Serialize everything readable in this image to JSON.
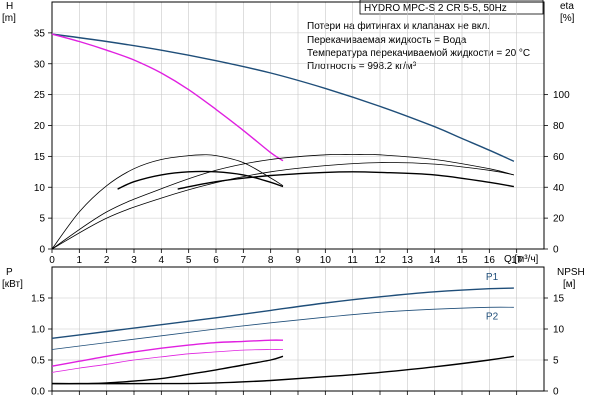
{
  "chart_data": [
    {
      "type": "line",
      "title": "HYDRO MPC-S 2 CR 5-5, 50Hz",
      "notes": [
        "Потери на фитингах и клапанах не вкл.",
        "Перекачиваемая жидкость = Вода",
        "Температура перекачиваемой жидкости = 20 °C",
        "Плотность = 998.2 кг/м³"
      ],
      "xlabel": "Q [м³/ч]",
      "ylabel": "H",
      "ylabel_unit": "[m]",
      "y2label": "eta",
      "y2label_unit": "[%]",
      "xlim": [
        0,
        18
      ],
      "ylim": [
        0,
        40
      ],
      "y2lim": [
        0,
        160
      ],
      "x_ticks": [
        0,
        1,
        2,
        3,
        4,
        5,
        6,
        7,
        8,
        9,
        10,
        11,
        12,
        13,
        14,
        15,
        16,
        17
      ],
      "y_ticks": [
        0,
        5,
        10,
        15,
        20,
        25,
        30,
        35
      ],
      "y2_ticks": [
        0,
        20,
        40,
        60,
        80,
        100
      ],
      "grid": true,
      "series": [
        {
          "axis": "left",
          "color": "#1f4e79",
          "width": 1.4,
          "x": [
            0,
            2,
            4,
            6,
            8,
            10,
            12,
            14,
            15,
            16,
            16.9
          ],
          "y": [
            34.8,
            33.6,
            32.2,
            30.5,
            28.5,
            26.0,
            23.1,
            19.8,
            17.9,
            16.0,
            14.2
          ]
        },
        {
          "axis": "left",
          "color": "#e020e0",
          "width": 1.4,
          "x": [
            0,
            1,
            2,
            3,
            4,
            5,
            6,
            7,
            8,
            8.45
          ],
          "y": [
            34.8,
            33.6,
            32.2,
            30.6,
            28.5,
            25.8,
            22.6,
            19.2,
            15.6,
            14.3
          ]
        },
        {
          "axis": "right",
          "color": "#000000",
          "width": 0.8,
          "x": [
            0,
            1,
            2,
            3,
            4,
            5,
            5.5,
            6,
            7,
            8,
            8.45
          ],
          "y": [
            0,
            24,
            41,
            52,
            58,
            60.5,
            61,
            60.5,
            56,
            46,
            41
          ]
        },
        {
          "axis": "right",
          "color": "#000000",
          "width": 0.8,
          "x": [
            0,
            2,
            4,
            6,
            8,
            10,
            11,
            12,
            14,
            16,
            16.9
          ],
          "y": [
            0,
            24,
            39,
            51,
            58,
            61,
            61.2,
            61,
            58,
            52,
            48
          ]
        },
        {
          "axis": "right",
          "color": "#000000",
          "width": 0.8,
          "x": [
            0,
            2,
            4,
            6,
            8,
            10,
            12,
            14,
            16,
            16.9
          ],
          "y": [
            0,
            20,
            33,
            43,
            50,
            54,
            56,
            55,
            51,
            48
          ]
        },
        {
          "axis": "left",
          "color": "#000000",
          "width": 1.4,
          "x": [
            2.4,
            3,
            4,
            5,
            6,
            7,
            8,
            8.45
          ],
          "y": [
            9.7,
            10.9,
            12.0,
            12.5,
            12.5,
            12.0,
            10.8,
            10.1
          ]
        },
        {
          "axis": "left",
          "color": "#000000",
          "width": 1.4,
          "x": [
            4.6,
            6,
            8,
            10,
            11,
            12,
            14,
            16,
            16.9
          ],
          "y": [
            9.7,
            10.9,
            11.9,
            12.4,
            12.5,
            12.4,
            12.0,
            10.8,
            10.1
          ]
        }
      ]
    },
    {
      "type": "line",
      "ylabel": "P",
      "ylabel_unit": "[кВт]",
      "y2label": "NPSH",
      "y2label_unit": "[м]",
      "xlim": [
        0,
        18
      ],
      "ylim": [
        0,
        2.0
      ],
      "y2lim": [
        0,
        20
      ],
      "y_ticks": [
        0,
        0.5,
        1.0,
        1.5
      ],
      "y_tick_labels": [
        "0.0",
        "0.5",
        "1.0",
        "1.5"
      ],
      "y2_ticks": [
        0,
        5,
        10,
        15
      ],
      "grid": true,
      "series": [
        {
          "name": "P1",
          "axis": "left",
          "color": "#1f4e79",
          "width": 1.4,
          "x": [
            0,
            2,
            4,
            6,
            8,
            10,
            12,
            14,
            16,
            16.9
          ],
          "y": [
            0.85,
            0.96,
            1.07,
            1.18,
            1.3,
            1.42,
            1.52,
            1.6,
            1.65,
            1.66
          ]
        },
        {
          "name": "P2",
          "axis": "left",
          "color": "#1f4e79",
          "width": 0.8,
          "x": [
            0,
            2,
            4,
            6,
            8,
            10,
            12,
            14,
            16,
            16.9
          ],
          "y": [
            0.67,
            0.78,
            0.89,
            1.0,
            1.1,
            1.19,
            1.27,
            1.32,
            1.35,
            1.35
          ]
        },
        {
          "axis": "left",
          "color": "#e020e0",
          "width": 1.4,
          "x": [
            0,
            1,
            2,
            3,
            4,
            5,
            6,
            7,
            8,
            8.45
          ],
          "y": [
            0.4,
            0.48,
            0.56,
            0.63,
            0.69,
            0.74,
            0.78,
            0.8,
            0.82,
            0.82
          ]
        },
        {
          "axis": "left",
          "color": "#e020e0",
          "width": 0.8,
          "x": [
            0,
            1,
            2,
            3,
            4,
            5,
            6,
            7,
            8,
            8.45
          ],
          "y": [
            0.3,
            0.37,
            0.43,
            0.5,
            0.55,
            0.6,
            0.63,
            0.66,
            0.67,
            0.67
          ]
        },
        {
          "axis": "right",
          "color": "#000000",
          "width": 1.4,
          "x": [
            0,
            1,
            2,
            3,
            4,
            5,
            6,
            7,
            8,
            8.45
          ],
          "y": [
            1.2,
            1.2,
            1.3,
            1.6,
            2.0,
            2.7,
            3.4,
            4.2,
            5.0,
            5.6
          ]
        },
        {
          "axis": "right",
          "color": "#000000",
          "width": 1.4,
          "x": [
            0,
            4,
            6,
            8,
            10,
            12,
            14,
            16,
            16.9
          ],
          "y": [
            1.2,
            1.2,
            1.3,
            1.7,
            2.3,
            3.0,
            3.9,
            5.0,
            5.6
          ]
        }
      ]
    }
  ]
}
